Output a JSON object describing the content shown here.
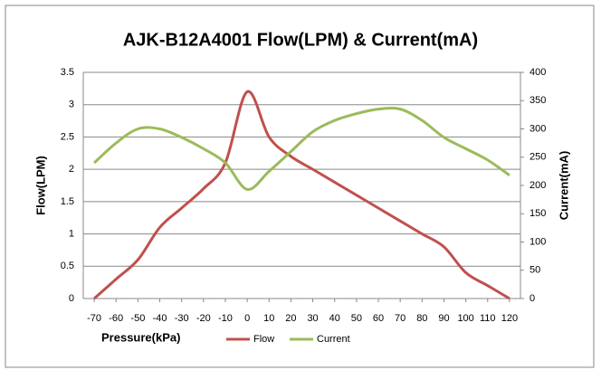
{
  "chart_data": {
    "type": "line",
    "title": "AJK-B12A4001 Flow(LPM) & Current(mA)",
    "xlabel": "Pressure(kPa)",
    "ylabel": "Flow(LPM)",
    "y2label": "Current(mA)",
    "x": [
      -70,
      -60,
      -50,
      -40,
      -30,
      -20,
      -10,
      0,
      10,
      20,
      30,
      40,
      50,
      60,
      70,
      80,
      90,
      100,
      110,
      120
    ],
    "series": [
      {
        "name": "Flow",
        "color": "#c0504d",
        "values": [
          0,
          0.3,
          0.6,
          1.1,
          1.4,
          1.7,
          2.1,
          3.2,
          2.5,
          2.2,
          2.0,
          1.8,
          1.6,
          1.4,
          1.2,
          1.0,
          0.8,
          0.4,
          0.2,
          0
        ]
      },
      {
        "name": "Current",
        "color": "#9bbb59",
        "axis": "y2",
        "values": [
          240,
          275,
          300,
          300,
          285,
          265,
          240,
          193,
          225,
          260,
          295,
          315,
          327,
          335,
          335,
          315,
          285,
          265,
          245,
          218
        ]
      }
    ],
    "xlim": [
      -75,
      125
    ],
    "xticks": [
      -70,
      -60,
      -50,
      -40,
      -30,
      -20,
      -10,
      0,
      10,
      20,
      30,
      40,
      50,
      60,
      70,
      80,
      90,
      100,
      110,
      120
    ],
    "ylim": [
      0,
      3.5
    ],
    "yticks": [
      0,
      0.5,
      1,
      1.5,
      2,
      2.5,
      3,
      3.5
    ],
    "y2lim": [
      0,
      400
    ],
    "y2ticks": [
      0,
      50,
      100,
      150,
      200,
      250,
      300,
      350,
      400
    ],
    "grid": true,
    "legend": "bottom"
  }
}
